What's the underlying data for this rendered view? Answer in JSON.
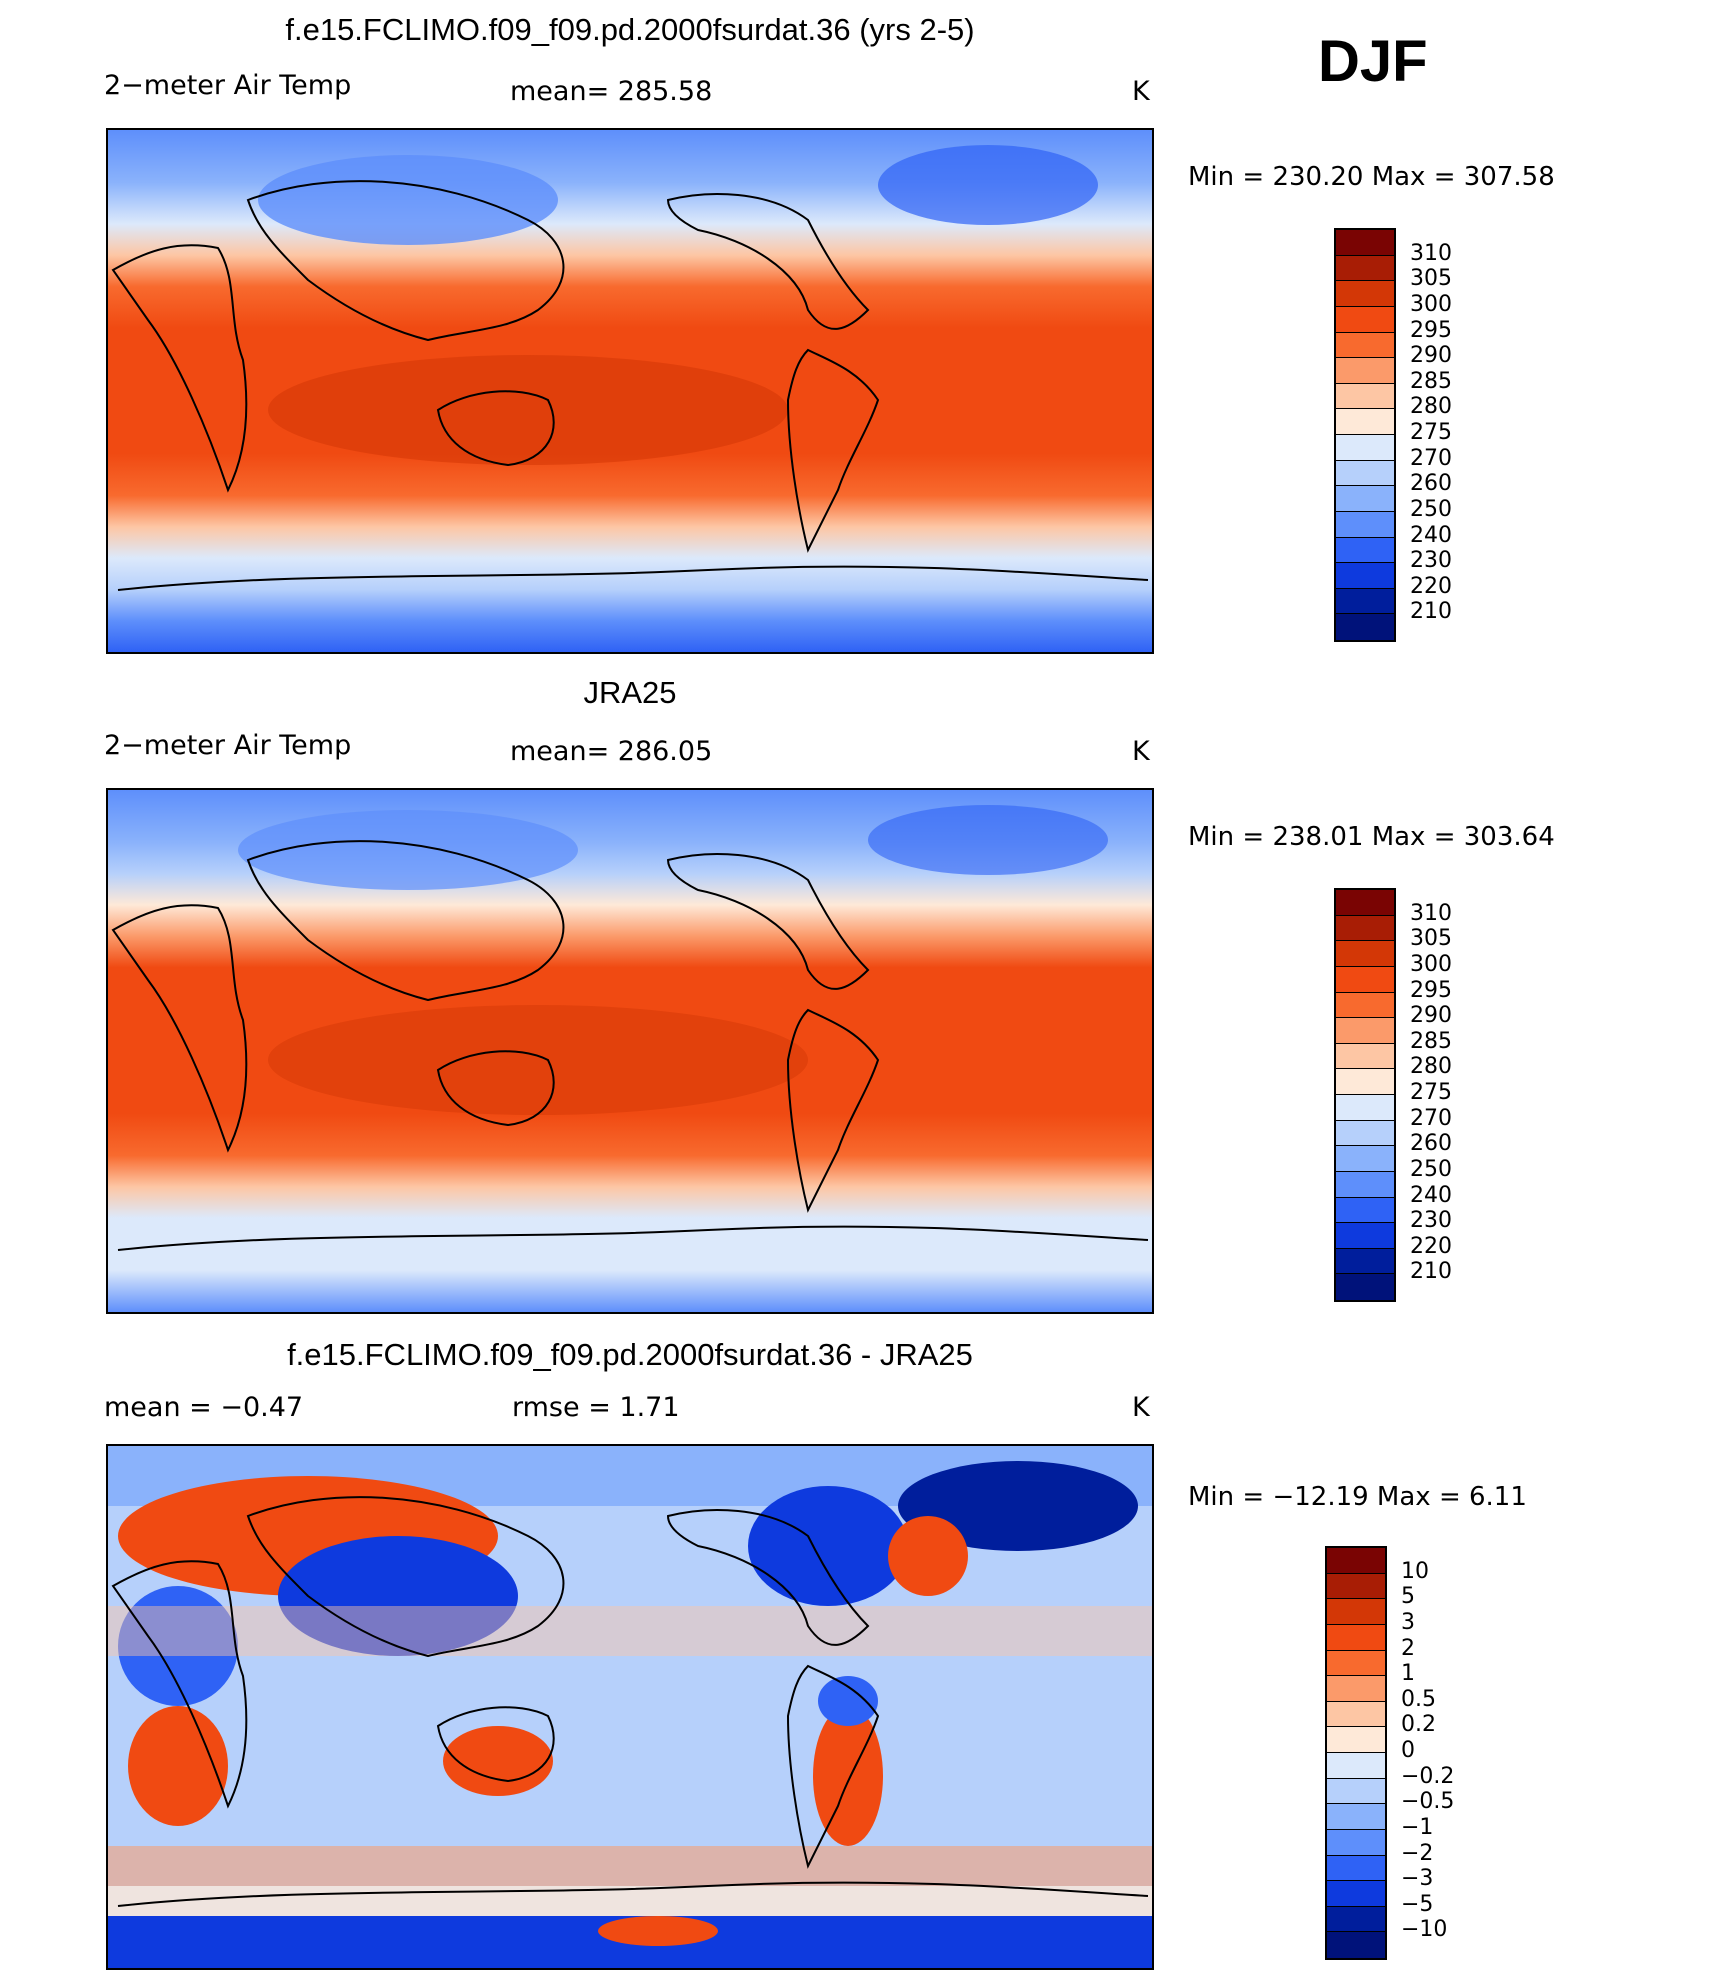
{
  "season": "DJF",
  "temp_levels": [
    "310",
    "305",
    "300",
    "295",
    "290",
    "285",
    "280",
    "275",
    "270",
    "260",
    "250",
    "240",
    "230",
    "220",
    "210"
  ],
  "temp_colors": [
    "#7a0403",
    "#a81d05",
    "#d33706",
    "#f04a12",
    "#f86a2e",
    "#fb9a6a",
    "#fdc6a4",
    "#fee9d8",
    "#dce9fb",
    "#b6d0fb",
    "#8ab2fb",
    "#5e8ffb",
    "#2f62f5",
    "#0e3ade",
    "#001e9c",
    "#00127a"
  ],
  "diff_levels": [
    "10",
    "5",
    "3",
    "2",
    "1",
    "0.5",
    "0.2",
    "0",
    "−0.2",
    "−0.5",
    "−1",
    "−2",
    "−3",
    "−5",
    "−10"
  ],
  "diff_colors": [
    "#7a0403",
    "#a81d05",
    "#d33706",
    "#f04a12",
    "#f86a2e",
    "#fb9a6a",
    "#fdc6a4",
    "#fee9d8",
    "#dce9fb",
    "#b6d0fb",
    "#8ab2fb",
    "#5e8ffb",
    "#2f62f5",
    "#0e3ade",
    "#001e9c",
    "#00127a"
  ],
  "panels": [
    {
      "title": "f.e15.FCLIMO.f09_f09.pd.2000fsurdat.36 (yrs 2-5)",
      "left_label": "2−meter Air Temp",
      "center_label": "mean=  285.58",
      "unit": "K",
      "minmax": "Min  =  230.20  Max  =  307.58",
      "kind": "temp"
    },
    {
      "title": "JRA25",
      "left_label": "2−meter Air Temp",
      "center_label": "mean=  286.05",
      "unit": "K",
      "minmax": "Min  =  238.01  Max  =  303.64",
      "kind": "temp"
    },
    {
      "title": "f.e15.FCLIMO.f09_f09.pd.2000fsurdat.36 - JRA25",
      "left_label": "mean  =    −0.47",
      "center_label": "rmse  =     1.71",
      "unit": "K",
      "minmax": "Min  =  −12.19  Max  =     6.11",
      "kind": "diff"
    }
  ]
}
